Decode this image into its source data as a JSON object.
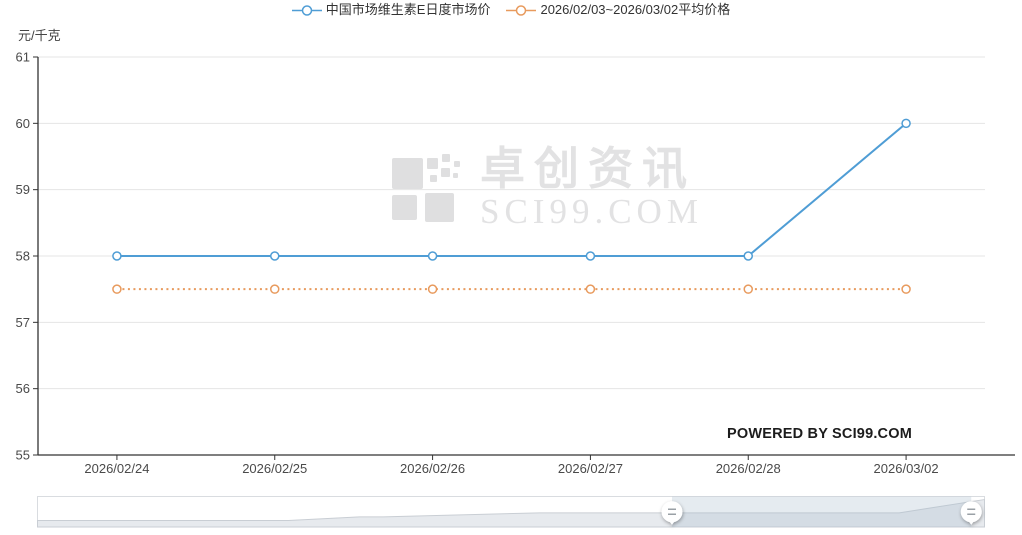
{
  "chart_data": {
    "type": "line",
    "categories": [
      "2026/02/24",
      "2026/02/25",
      "2026/02/26",
      "2026/02/27",
      "2026/02/28",
      "2026/03/02"
    ],
    "series": [
      {
        "name": "中国市场维生素E日度市场价",
        "values": [
          58,
          58,
          58,
          58,
          58,
          60
        ],
        "color": "#4f9dd5",
        "line_style": "solid",
        "marker": "hollow-circle"
      },
      {
        "name": "2026/02/03~2026/03/02平均价格",
        "values": [
          57.5,
          57.5,
          57.5,
          57.5,
          57.5,
          57.5
        ],
        "color": "#e89a5d",
        "line_style": "dotted",
        "marker": "hollow-circle"
      }
    ],
    "title": "",
    "xlabel": "",
    "ylabel": "元/千克",
    "ylim": [
      55,
      61
    ],
    "yticks": [
      55,
      56,
      57,
      58,
      59,
      60,
      61
    ],
    "grid": true,
    "legend_position": "top"
  },
  "watermark": {
    "title": "卓创资讯",
    "site": "SCI99.COM"
  },
  "powered_by": "POWERED BY SCI99.COM",
  "navigator": {
    "selection_pct": [
      0.67,
      0.986
    ],
    "profile": [
      [
        0,
        0.215
      ],
      [
        0.265,
        0.215
      ],
      [
        0.34,
        0.33
      ],
      [
        0.365,
        0.33
      ],
      [
        0.53,
        0.465
      ],
      [
        0.91,
        0.465
      ],
      [
        1,
        0.9
      ]
    ]
  },
  "colors": {
    "axis": "#333333",
    "grid": "#e4e4e4",
    "tick_text": "#4a4a4a",
    "nav_border": "#d9dce0",
    "nav_area_fill": "#e7eaee",
    "nav_area_line": "#c9ced4",
    "nav_selection": "rgba(170,188,205,0.30)"
  }
}
